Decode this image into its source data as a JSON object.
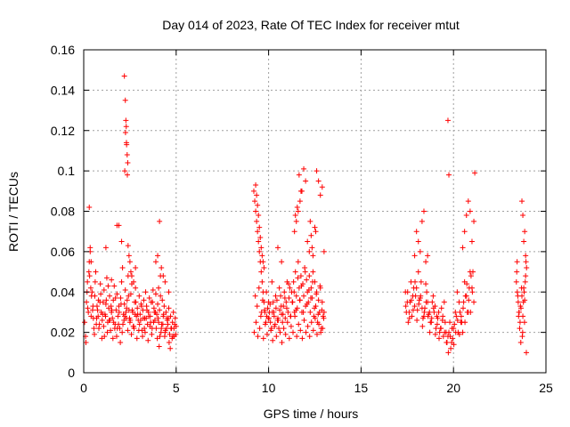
{
  "chart_data": {
    "type": "scatter",
    "title": "Day 014 of 2023, Rate Of TEC Index for receiver mtut",
    "xlabel": "GPS time / hours",
    "ylabel": "ROTI / TECUs",
    "xlim": [
      0,
      25
    ],
    "ylim": [
      0,
      0.16
    ],
    "x_ticks": [
      "0",
      "5",
      "10",
      "15",
      "20",
      "25"
    ],
    "y_ticks": [
      "0",
      "0.02",
      "0.04",
      "0.06",
      "0.08",
      "0.1",
      "0.12",
      "0.14",
      "0.16"
    ],
    "grid": true,
    "marker": "plus",
    "color": "#ff0000",
    "series": [
      {
        "x": [
          0.05,
          0.1,
          0.15,
          0.2,
          0.25,
          0.3,
          0.35,
          0.4,
          0.45,
          0.5,
          0.55,
          0.6,
          0.65,
          0.7,
          0.75,
          0.8,
          0.85,
          0.9,
          0.95,
          1.0,
          1.05,
          1.1,
          1.15,
          1.2,
          1.25,
          1.3,
          1.35,
          1.4,
          1.45,
          1.5,
          1.55,
          1.6,
          1.65,
          1.7,
          1.75,
          1.8,
          1.85,
          1.9,
          1.95,
          2.0,
          2.05,
          2.1,
          2.15,
          2.2,
          2.25,
          2.3,
          2.35,
          2.4,
          2.45,
          2.5,
          2.55,
          2.6,
          2.65,
          2.7,
          2.75,
          2.8,
          2.85,
          2.9,
          2.95,
          3.0,
          3.05,
          3.1,
          3.15,
          3.2,
          3.25,
          3.3,
          3.35,
          3.4,
          3.45,
          3.5,
          3.55,
          3.6,
          3.65,
          3.7,
          3.75,
          3.8,
          3.85,
          3.9,
          3.95,
          4.0,
          4.05,
          4.1,
          4.15,
          4.2,
          4.25,
          4.3,
          4.35,
          4.4,
          4.45,
          4.5,
          4.55,
          4.6,
          4.65,
          4.7,
          4.75,
          4.8,
          4.85,
          4.9,
          4.95,
          5.0,
          0.12,
          0.22,
          0.32,
          0.42,
          0.52,
          0.62,
          0.72,
          0.82,
          0.92,
          1.02,
          1.12,
          1.22,
          1.32,
          1.42,
          1.52,
          1.62,
          1.72,
          1.82,
          1.92,
          2.02,
          2.12,
          2.22,
          2.32,
          2.42,
          2.52,
          2.62,
          2.72,
          2.82,
          2.92,
          3.02,
          3.12,
          3.22,
          3.32,
          3.42,
          3.52,
          3.62,
          3.72,
          3.82,
          3.92,
          4.02,
          4.12,
          4.22,
          4.32,
          4.42,
          4.52,
          4.62,
          4.72,
          4.82,
          4.92,
          0.18,
          0.28,
          0.38,
          0.48,
          0.58,
          0.68,
          0.78,
          0.88,
          0.98,
          1.08,
          1.18,
          1.28,
          1.38,
          1.48,
          1.58,
          1.68,
          1.78,
          1.88,
          1.98,
          2.08,
          2.18,
          2.28,
          2.38,
          2.48,
          2.58,
          2.68,
          2.78,
          2.88,
          2.98,
          3.08,
          3.18,
          3.28,
          3.38,
          3.48,
          3.58,
          3.68,
          3.78,
          3.88,
          3.98,
          4.08,
          4.18,
          4.28,
          4.38,
          4.48,
          4.58,
          4.68,
          4.78,
          4.88,
          4.98,
          0.3,
          0.35,
          0.4,
          1.2,
          1.8,
          1.9,
          2.2,
          2.25,
          2.28,
          2.3,
          2.32,
          2.35,
          2.38,
          2.22,
          2.26,
          2.31,
          2.36,
          2.4,
          2.45,
          2.5,
          2.55,
          2.6,
          2.7,
          2.8,
          3.9,
          4.0,
          4.2,
          4.3,
          4.4,
          4.6,
          4.1,
          4.15,
          4.05,
          2.05,
          1.5,
          9.2,
          9.25,
          9.3,
          9.35,
          9.4,
          9.45,
          9.5,
          9.55,
          9.6,
          9.65,
          9.7,
          9.75,
          9.8,
          9.85,
          9.9,
          9.95,
          10.0,
          10.05,
          10.1,
          10.15,
          10.2,
          10.25,
          10.3,
          10.35,
          10.4,
          10.45,
          10.5,
          10.55,
          10.6,
          10.65,
          10.7,
          10.75,
          10.8,
          10.85,
          10.9,
          10.95,
          11.0,
          11.05,
          11.1,
          11.15,
          11.2,
          11.25,
          11.3,
          11.35,
          11.4,
          11.45,
          11.5,
          11.55,
          11.6,
          11.65,
          11.7,
          11.75,
          11.8,
          11.85,
          11.9,
          11.95,
          12.0,
          12.05,
          12.1,
          12.15,
          12.2,
          12.25,
          12.3,
          12.35,
          12.4,
          12.45,
          12.5,
          12.55,
          12.6,
          12.65,
          12.7,
          12.75,
          12.8,
          12.85,
          12.9,
          12.95,
          13.0,
          9.22,
          9.32,
          9.42,
          9.52,
          9.62,
          9.72,
          9.82,
          9.92,
          10.02,
          10.12,
          10.22,
          10.32,
          10.42,
          10.52,
          10.62,
          10.72,
          10.82,
          10.92,
          11.02,
          11.12,
          11.22,
          11.32,
          11.42,
          11.52,
          11.62,
          11.72,
          11.82,
          11.92,
          12.02,
          12.12,
          12.22,
          12.32,
          12.42,
          12.52,
          12.62,
          12.72,
          12.82,
          12.92,
          9.28,
          9.38,
          9.48,
          9.58,
          9.68,
          9.78,
          9.88,
          9.98,
          10.08,
          10.18,
          10.28,
          10.38,
          10.48,
          10.58,
          10.68,
          10.78,
          10.88,
          10.98,
          11.08,
          11.18,
          11.28,
          11.38,
          11.48,
          11.58,
          11.68,
          11.78,
          11.88,
          11.98,
          12.08,
          12.18,
          12.28,
          12.38,
          12.48,
          12.58,
          12.68,
          12.78,
          12.88,
          12.98,
          9.3,
          9.35,
          9.4,
          9.45,
          9.5,
          9.55,
          9.6,
          9.65,
          9.7,
          9.75,
          11.4,
          11.5,
          11.6,
          11.7,
          11.8,
          11.9,
          12.0,
          12.1,
          12.2,
          12.3,
          12.4,
          12.5,
          12.6,
          12.7,
          12.8,
          12.9,
          13.0,
          11.65,
          11.75,
          11.55,
          12.25,
          12.35,
          12.55,
          11.45,
          10.5,
          10.7,
          17.4,
          17.5,
          17.6,
          17.7,
          17.8,
          17.9,
          18.0,
          18.1,
          18.2,
          18.3,
          18.4,
          18.5,
          18.6,
          18.7,
          18.8,
          18.9,
          19.0,
          19.1,
          19.2,
          19.3,
          19.4,
          19.5,
          19.6,
          19.7,
          19.8,
          19.9,
          20.0,
          20.1,
          20.2,
          20.3,
          20.4,
          20.5,
          20.6,
          20.7,
          20.8,
          20.9,
          21.0,
          21.1,
          17.45,
          17.55,
          17.65,
          17.75,
          17.85,
          17.95,
          18.05,
          18.15,
          18.25,
          18.35,
          18.45,
          18.55,
          18.65,
          18.75,
          18.85,
          18.95,
          19.05,
          19.15,
          19.25,
          19.35,
          19.45,
          19.55,
          19.65,
          19.75,
          19.85,
          19.95,
          20.05,
          20.15,
          20.25,
          20.35,
          20.45,
          20.55,
          20.65,
          20.75,
          20.85,
          20.95,
          21.05,
          17.42,
          17.52,
          17.62,
          17.72,
          17.82,
          17.92,
          18.02,
          18.12,
          18.22,
          18.32,
          18.42,
          18.52,
          18.62,
          18.72,
          18.82,
          18.92,
          19.02,
          19.12,
          19.22,
          19.32,
          19.42,
          19.52,
          19.62,
          19.72,
          19.82,
          19.92,
          20.02,
          20.12,
          20.22,
          20.32,
          20.42,
          20.52,
          20.62,
          20.72,
          20.82,
          20.92,
          21.02,
          18.0,
          18.1,
          18.2,
          18.3,
          18.4,
          18.5,
          19.7,
          19.75,
          20.5,
          20.6,
          20.7,
          20.8,
          20.9,
          21.0,
          21.1,
          21.15,
          17.9,
          18.6,
          23.4,
          23.45,
          23.5,
          23.55,
          23.6,
          23.65,
          23.7,
          23.75,
          23.8,
          23.85,
          23.9,
          23.95,
          23.42,
          23.48,
          23.52,
          23.58,
          23.62,
          23.68,
          23.72,
          23.78,
          23.82,
          23.88,
          23.92,
          23.44,
          23.54,
          23.64,
          23.74,
          23.84,
          23.94,
          23.8,
          23.85,
          23.9,
          23.75,
          23.7
        ],
        "y": [
          0.025,
          0.018,
          0.035,
          0.045,
          0.03,
          0.055,
          0.062,
          0.028,
          0.04,
          0.033,
          0.022,
          0.038,
          0.05,
          0.027,
          0.031,
          0.036,
          0.024,
          0.044,
          0.03,
          0.026,
          0.035,
          0.041,
          0.029,
          0.034,
          0.047,
          0.025,
          0.032,
          0.038,
          0.021,
          0.03,
          0.027,
          0.036,
          0.043,
          0.024,
          0.031,
          0.039,
          0.028,
          0.033,
          0.022,
          0.037,
          0.045,
          0.052,
          0.029,
          0.034,
          0.041,
          0.027,
          0.036,
          0.048,
          0.031,
          0.025,
          0.039,
          0.044,
          0.03,
          0.023,
          0.035,
          0.042,
          0.028,
          0.032,
          0.026,
          0.038,
          0.029,
          0.034,
          0.021,
          0.031,
          0.036,
          0.027,
          0.04,
          0.033,
          0.024,
          0.03,
          0.037,
          0.028,
          0.035,
          0.022,
          0.041,
          0.032,
          0.026,
          0.039,
          0.029,
          0.034,
          0.025,
          0.031,
          0.038,
          0.022,
          0.036,
          0.028,
          0.033,
          0.02,
          0.03,
          0.027,
          0.024,
          0.032,
          0.019,
          0.028,
          0.022,
          0.025,
          0.03,
          0.018,
          0.027,
          0.023,
          0.015,
          0.032,
          0.048,
          0.038,
          0.027,
          0.045,
          0.033,
          0.022,
          0.039,
          0.029,
          0.018,
          0.036,
          0.043,
          0.026,
          0.031,
          0.025,
          0.037,
          0.022,
          0.03,
          0.034,
          0.024,
          0.028,
          0.032,
          0.038,
          0.026,
          0.031,
          0.022,
          0.035,
          0.029,
          0.024,
          0.033,
          0.027,
          0.02,
          0.031,
          0.028,
          0.025,
          0.035,
          0.03,
          0.022,
          0.027,
          0.018,
          0.024,
          0.029,
          0.021,
          0.026,
          0.015,
          0.022,
          0.018,
          0.024,
          0.04,
          0.05,
          0.042,
          0.031,
          0.019,
          0.024,
          0.028,
          0.035,
          0.017,
          0.023,
          0.028,
          0.02,
          0.026,
          0.033,
          0.017,
          0.022,
          0.018,
          0.024,
          0.015,
          0.02,
          0.026,
          0.03,
          0.021,
          0.027,
          0.019,
          0.023,
          0.029,
          0.017,
          0.021,
          0.026,
          0.018,
          0.022,
          0.027,
          0.016,
          0.023,
          0.019,
          0.025,
          0.03,
          0.017,
          0.013,
          0.02,
          0.024,
          0.018,
          0.022,
          0.027,
          0.012,
          0.017,
          0.022,
          0.019,
          0.082,
          0.06,
          0.055,
          0.062,
          0.073,
          0.073,
          0.147,
          0.135,
          0.125,
          0.122,
          0.113,
          0.108,
          0.104,
          0.1,
          0.119,
          0.114,
          0.098,
          0.063,
          0.058,
          0.055,
          0.05,
          0.048,
          0.045,
          0.052,
          0.055,
          0.058,
          0.052,
          0.048,
          0.045,
          0.04,
          0.075,
          0.048,
          0.042,
          0.065,
          0.046,
          0.09,
          0.085,
          0.08,
          0.075,
          0.07,
          0.065,
          0.06,
          0.055,
          0.05,
          0.045,
          0.04,
          0.035,
          0.03,
          0.025,
          0.028,
          0.032,
          0.035,
          0.03,
          0.025,
          0.022,
          0.03,
          0.035,
          0.028,
          0.024,
          0.032,
          0.036,
          0.027,
          0.022,
          0.031,
          0.038,
          0.029,
          0.025,
          0.033,
          0.04,
          0.027,
          0.035,
          0.045,
          0.03,
          0.037,
          0.042,
          0.028,
          0.04,
          0.035,
          0.045,
          0.03,
          0.05,
          0.038,
          0.032,
          0.055,
          0.042,
          0.036,
          0.048,
          0.03,
          0.044,
          0.038,
          0.052,
          0.033,
          0.046,
          0.04,
          0.035,
          0.048,
          0.03,
          0.042,
          0.037,
          0.05,
          0.028,
          0.045,
          0.033,
          0.04,
          0.025,
          0.036,
          0.03,
          0.042,
          0.022,
          0.035,
          0.028,
          0.03,
          0.02,
          0.025,
          0.018,
          0.022,
          0.03,
          0.017,
          0.024,
          0.019,
          0.027,
          0.021,
          0.016,
          0.023,
          0.018,
          0.026,
          0.02,
          0.015,
          0.022,
          0.019,
          0.025,
          0.017,
          0.023,
          0.02,
          0.028,
          0.018,
          0.024,
          0.021,
          0.017,
          0.026,
          0.02,
          0.023,
          0.018,
          0.025,
          0.021,
          0.027,
          0.019,
          0.024,
          0.02,
          0.022,
          0.038,
          0.033,
          0.042,
          0.028,
          0.036,
          0.031,
          0.04,
          0.027,
          0.034,
          0.045,
          0.03,
          0.038,
          0.026,
          0.042,
          0.033,
          0.029,
          0.037,
          0.032,
          0.044,
          0.028,
          0.035,
          0.04,
          0.031,
          0.047,
          0.036,
          0.043,
          0.03,
          0.05,
          0.034,
          0.041,
          0.037,
          0.045,
          0.032,
          0.039,
          0.029,
          0.043,
          0.031,
          0.027,
          0.093,
          0.088,
          0.083,
          0.078,
          0.072,
          0.067,
          0.062,
          0.058,
          0.055,
          0.052,
          0.07,
          0.075,
          0.08,
          0.085,
          0.09,
          0.101,
          0.095,
          0.065,
          0.06,
          0.068,
          0.058,
          0.072,
          0.1,
          0.095,
          0.088,
          0.092,
          0.06,
          0.098,
          0.09,
          0.082,
          0.075,
          0.062,
          0.07,
          0.078,
          0.062,
          0.055,
          0.04,
          0.035,
          0.03,
          0.045,
          0.038,
          0.033,
          0.042,
          0.05,
          0.037,
          0.032,
          0.028,
          0.044,
          0.035,
          0.03,
          0.025,
          0.038,
          0.033,
          0.028,
          0.03,
          0.022,
          0.026,
          0.035,
          0.02,
          0.018,
          0.025,
          0.015,
          0.022,
          0.03,
          0.04,
          0.035,
          0.025,
          0.02,
          0.045,
          0.038,
          0.03,
          0.05,
          0.042,
          0.035,
          0.03,
          0.025,
          0.035,
          0.028,
          0.042,
          0.038,
          0.031,
          0.036,
          0.045,
          0.027,
          0.032,
          0.04,
          0.029,
          0.025,
          0.035,
          0.03,
          0.022,
          0.027,
          0.02,
          0.032,
          0.018,
          0.025,
          0.015,
          0.02,
          0.012,
          0.017,
          0.024,
          0.028,
          0.02,
          0.03,
          0.025,
          0.035,
          0.038,
          0.03,
          0.042,
          0.048,
          0.05,
          0.033,
          0.04,
          0.027,
          0.036,
          0.031,
          0.045,
          0.026,
          0.034,
          0.038,
          0.023,
          0.03,
          0.035,
          0.028,
          0.02,
          0.027,
          0.032,
          0.019,
          0.024,
          0.017,
          0.022,
          0.028,
          0.02,
          0.015,
          0.01,
          0.018,
          0.022,
          0.014,
          0.02,
          0.026,
          0.019,
          0.028,
          0.032,
          0.025,
          0.044,
          0.036,
          0.03,
          0.04,
          0.07,
          0.065,
          0.06,
          0.075,
          0.08,
          0.055,
          0.125,
          0.098,
          0.062,
          0.07,
          0.078,
          0.085,
          0.08,
          0.065,
          0.075,
          0.099,
          0.058,
          0.058,
          0.045,
          0.04,
          0.035,
          0.03,
          0.025,
          0.032,
          0.038,
          0.028,
          0.042,
          0.036,
          0.048,
          0.052,
          0.05,
          0.038,
          0.028,
          0.022,
          0.033,
          0.042,
          0.018,
          0.035,
          0.04,
          0.045,
          0.055,
          0.055,
          0.03,
          0.015,
          0.02,
          0.025,
          0.01,
          0.065,
          0.07,
          0.058,
          0.078,
          0.085
        ]
      }
    ]
  }
}
